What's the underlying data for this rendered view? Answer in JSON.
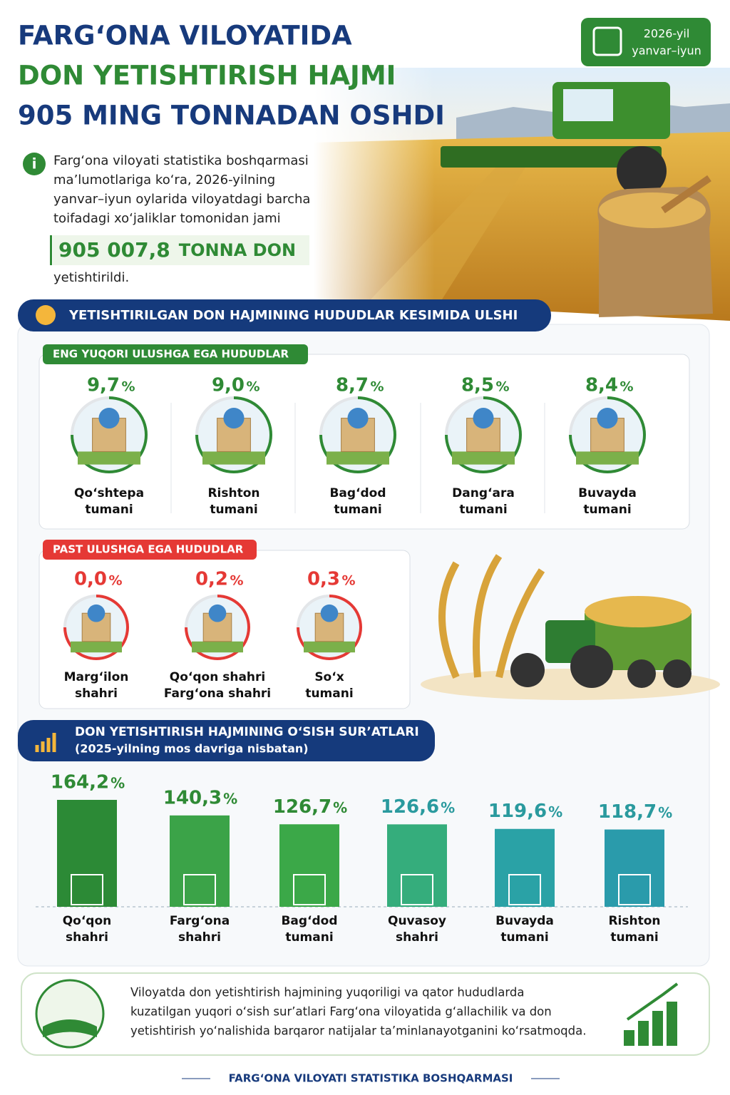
{
  "header": {
    "title_lines": [
      "FARG‘ONA VILOYATIDA",
      "DON YETISHTIRISH HAJMI",
      "905 MING TONNADAN OSHDI"
    ],
    "date_badge": [
      "2026-yil",
      "yanvar–iyun"
    ]
  },
  "intro": {
    "lines": [
      "Farg‘ona viloyati statistika boshqarmasi",
      "ma’lumotlariga ko‘ra, 2026-yilning",
      "yanvar–iyun oylarida viloyatdagi barcha",
      "toifadagi xo‘jaliklar tomonidan jami"
    ],
    "highlight_value": "905 007,8",
    "highlight_unit": "TONNA DON",
    "end": "yetishtirildi."
  },
  "shares": {
    "title": "YETISHTIRILGAN DON HAJMINING HUDUDLAR KESIMIDA ULSHI",
    "unit": "%",
    "top": {
      "label": "ENG YUQORI ULUSHGA EGA HUDUDLAR",
      "items": [
        {
          "value": "9,7",
          "name": [
            "Qo‘shtepa",
            "tumani"
          ]
        },
        {
          "value": "9,0",
          "name": [
            "Rishton",
            "tumani"
          ]
        },
        {
          "value": "8,7",
          "name": [
            "Bag‘dod",
            "tumani"
          ]
        },
        {
          "value": "8,5",
          "name": [
            "Dang‘ara",
            "tumani"
          ]
        },
        {
          "value": "8,4",
          "name": [
            "Buvayda",
            "tumani"
          ]
        }
      ]
    },
    "low": {
      "label": "PAST ULUSHGA EGA HUDUDLAR",
      "items": [
        {
          "value": "0,0",
          "name": [
            "Marg‘ilon",
            "shahri"
          ]
        },
        {
          "value": "0,2",
          "name": [
            "Qo‘qon shahri",
            "Farg‘ona shahri"
          ]
        },
        {
          "value": "0,3",
          "name": [
            "So‘x",
            "tumani"
          ]
        }
      ]
    }
  },
  "growth": {
    "title": "DON YETISHTIRISH HAJMINING O‘SISH SUR’ATLARI",
    "subtitle": "(2025-yilning mos davriga nisbatan)",
    "unit": "%",
    "values": [
      164.2,
      140.3,
      126.7,
      126.6,
      119.6,
      118.7
    ],
    "value_labels": [
      "164,2",
      "140,3",
      "126,7",
      "126,6",
      "119,6",
      "118,7"
    ],
    "names": [
      [
        "Qo‘qon",
        "shahri"
      ],
      [
        "Farg‘ona",
        "shahri"
      ],
      [
        "Bag‘dod",
        "tumani"
      ],
      [
        "Quvasoy",
        "shahri"
      ],
      [
        "Buvayda",
        "tumani"
      ],
      [
        "Rishton",
        "tumani"
      ]
    ],
    "colors": [
      "#2c8a36",
      "#3ba348",
      "#3ba848",
      "#35ad7c",
      "#2aa2a6",
      "#2a9bab"
    ]
  },
  "conclusion": {
    "lines": [
      "Viloyatda don yetishtirish hajmining yuqoriligi va qator hududlarda",
      "kuzatilgan yuqori o‘sish sur’atlari Farg‘ona viloyatida g‘allachilik va don",
      "yetishtirish yo‘nalishida barqaror natijalar ta’minlanayotganini ko‘rsatmoqda."
    ]
  },
  "footer": "FARG‘ONA VILOYATI STATISTIKA BOSHQARMASI"
}
